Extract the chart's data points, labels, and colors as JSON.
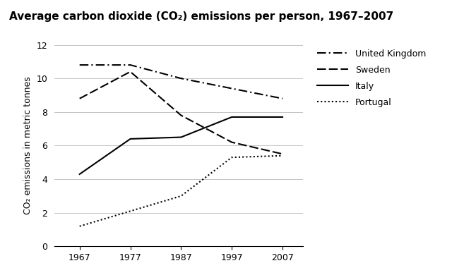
{
  "title": "Average carbon dioxide (CO₂) emissions per person, 1967–2007",
  "ylabel": "CO₂ emissions in metric tonnes",
  "xlabel": "",
  "years": [
    1967,
    1977,
    1987,
    1997,
    2007
  ],
  "united_kingdom": [
    10.8,
    10.8,
    10.0,
    9.4,
    8.8
  ],
  "sweden": [
    8.8,
    10.4,
    7.8,
    6.2,
    5.5
  ],
  "italy": [
    4.3,
    6.4,
    6.5,
    7.7,
    7.7
  ],
  "portugal": [
    1.2,
    2.1,
    3.0,
    5.3,
    5.4
  ],
  "ylim": [
    0,
    12
  ],
  "yticks": [
    0,
    2,
    4,
    6,
    8,
    10,
    12
  ],
  "xticks": [
    1967,
    1977,
    1987,
    1997,
    2007
  ],
  "line_color": "#000000",
  "background_color": "#ffffff",
  "legend_labels": [
    "United Kingdom",
    "Sweden",
    "Italy",
    "Portugal"
  ],
  "title_fontsize": 11,
  "label_fontsize": 9,
  "tick_fontsize": 9,
  "legend_fontsize": 9,
  "lw": 1.5
}
